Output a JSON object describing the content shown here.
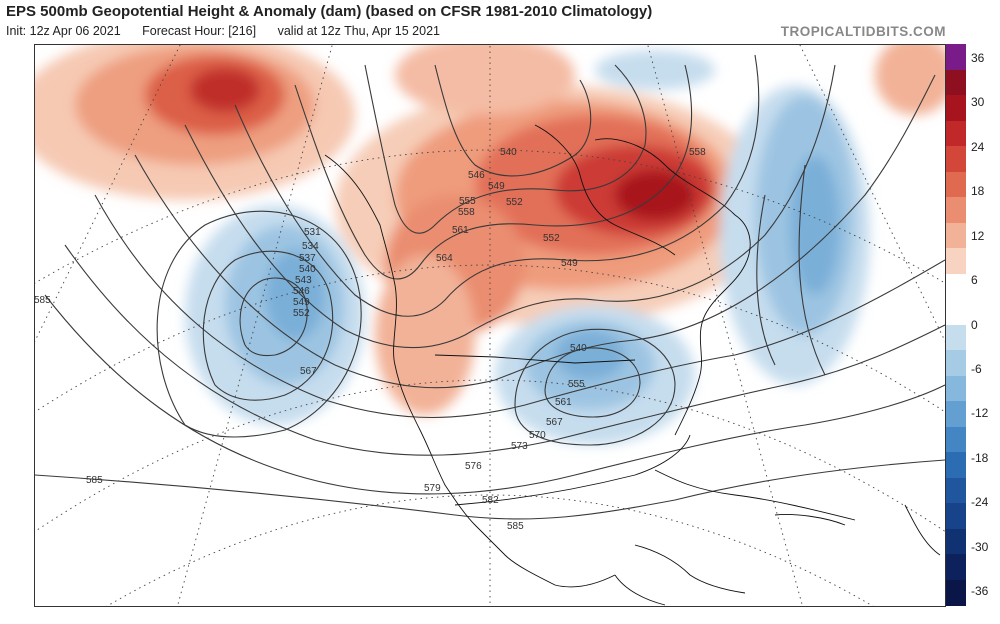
{
  "header": {
    "title": "EPS 500mb Geopotential Height & Anomaly (dam) (based on CFSR 1981-2010 Climatology)",
    "init": "Init: 12z Apr 06 2021",
    "forecast_hour": "Forecast Hour: [216]",
    "valid": "valid at 12z Thu, Apr 15 2021",
    "credit": "TROPICALTIDBITS.COM"
  },
  "colorbar": {
    "ticks": [
      "36",
      "30",
      "24",
      "18",
      "12",
      "6",
      "0",
      "-6",
      "-12",
      "-18",
      "-24",
      "-30",
      "-36"
    ],
    "colors": [
      "#7a1b8a",
      "#8e1020",
      "#a8141e",
      "#c0282a",
      "#d3463a",
      "#e06a50",
      "#ea8d70",
      "#f2b298",
      "#f8d3c2",
      "#ffffff",
      "#ffffff",
      "#c6ddee",
      "#a6cbe5",
      "#86b7dc",
      "#649fd1",
      "#4486c4",
      "#2c6cb2",
      "#1f569d",
      "#17438a",
      "#113272",
      "#0d225c",
      "#0a1548"
    ]
  },
  "contour_labels": {
    "pacific_low": [
      "531",
      "534",
      "537",
      "540",
      "543",
      "546",
      "549",
      "552"
    ],
    "canada_high": [
      "540",
      "546",
      "549",
      "552",
      "555",
      "558",
      "561",
      "564"
    ],
    "great_lakes_low": [
      "540",
      "555",
      "561",
      "567",
      "570",
      "573"
    ],
    "other": [
      "585",
      "585",
      "567",
      "552",
      "549",
      "558",
      "576",
      "579",
      "582",
      "585"
    ]
  }
}
